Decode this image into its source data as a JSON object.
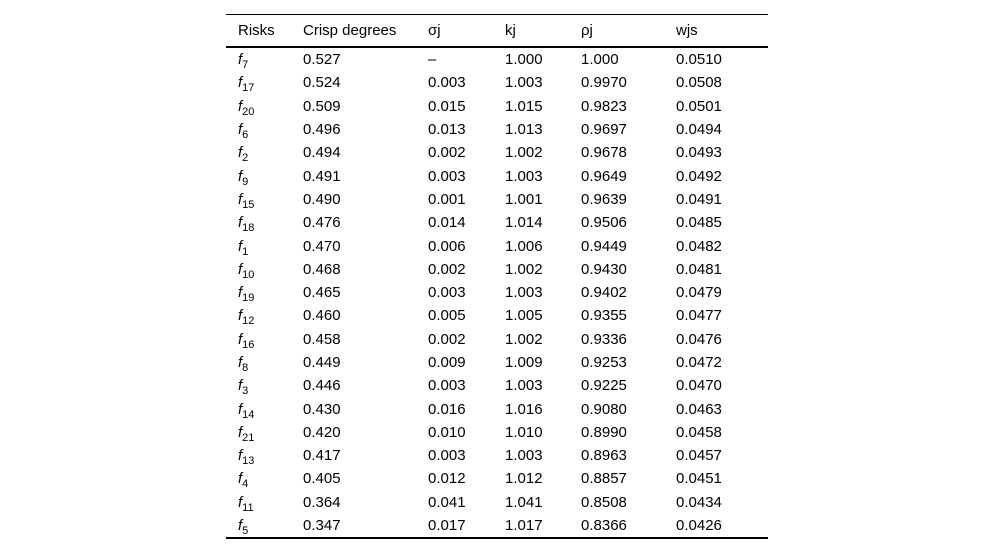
{
  "page": {
    "background_color": "#ffffff",
    "text_color": "#000000",
    "rule_color": "#000000"
  },
  "table": {
    "headers": [
      {
        "id": "risks",
        "label": "Risks"
      },
      {
        "id": "crisp_degrees",
        "label": "Crisp degrees"
      },
      {
        "id": "sigma_j",
        "label": "σj"
      },
      {
        "id": "k_j",
        "label": "kj"
      },
      {
        "id": "rho_j",
        "label": "ρj"
      },
      {
        "id": "w_js",
        "label": "wjs"
      }
    ],
    "rows": [
      {
        "risk_symbol": "f",
        "risk_subscript": "7",
        "crisp_degree": "0.527",
        "sigma": "–",
        "k": "1.000",
        "rho": "1.000",
        "w": "0.0510"
      },
      {
        "risk_symbol": "f",
        "risk_subscript": "17",
        "crisp_degree": "0.524",
        "sigma": "0.003",
        "k": "1.003",
        "rho": "0.9970",
        "w": "0.0508"
      },
      {
        "risk_symbol": "f",
        "risk_subscript": "20",
        "crisp_degree": "0.509",
        "sigma": "0.015",
        "k": "1.015",
        "rho": "0.9823",
        "w": "0.0501"
      },
      {
        "risk_symbol": "f",
        "risk_subscript": "6",
        "crisp_degree": "0.496",
        "sigma": "0.013",
        "k": "1.013",
        "rho": "0.9697",
        "w": "0.0494"
      },
      {
        "risk_symbol": "f",
        "risk_subscript": "2",
        "crisp_degree": "0.494",
        "sigma": "0.002",
        "k": "1.002",
        "rho": "0.9678",
        "w": "0.0493"
      },
      {
        "risk_symbol": "f",
        "risk_subscript": "9",
        "crisp_degree": "0.491",
        "sigma": "0.003",
        "k": "1.003",
        "rho": "0.9649",
        "w": "0.0492"
      },
      {
        "risk_symbol": "f",
        "risk_subscript": "15",
        "crisp_degree": "0.490",
        "sigma": "0.001",
        "k": "1.001",
        "rho": "0.9639",
        "w": "0.0491"
      },
      {
        "risk_symbol": "f",
        "risk_subscript": "18",
        "crisp_degree": "0.476",
        "sigma": "0.014",
        "k": "1.014",
        "rho": "0.9506",
        "w": "0.0485"
      },
      {
        "risk_symbol": "f",
        "risk_subscript": "1",
        "crisp_degree": "0.470",
        "sigma": "0.006",
        "k": "1.006",
        "rho": "0.9449",
        "w": "0.0482"
      },
      {
        "risk_symbol": "f",
        "risk_subscript": "10",
        "crisp_degree": "0.468",
        "sigma": "0.002",
        "k": "1.002",
        "rho": "0.9430",
        "w": "0.0481"
      },
      {
        "risk_symbol": "f",
        "risk_subscript": "19",
        "crisp_degree": "0.465",
        "sigma": "0.003",
        "k": "1.003",
        "rho": "0.9402",
        "w": "0.0479"
      },
      {
        "risk_symbol": "f",
        "risk_subscript": "12",
        "crisp_degree": "0.460",
        "sigma": "0.005",
        "k": "1.005",
        "rho": "0.9355",
        "w": "0.0477"
      },
      {
        "risk_symbol": "f",
        "risk_subscript": "16",
        "crisp_degree": "0.458",
        "sigma": "0.002",
        "k": "1.002",
        "rho": "0.9336",
        "w": "0.0476"
      },
      {
        "risk_symbol": "f",
        "risk_subscript": "8",
        "crisp_degree": "0.449",
        "sigma": "0.009",
        "k": "1.009",
        "rho": "0.9253",
        "w": "0.0472"
      },
      {
        "risk_symbol": "f",
        "risk_subscript": "3",
        "crisp_degree": "0.446",
        "sigma": "0.003",
        "k": "1.003",
        "rho": "0.9225",
        "w": "0.0470"
      },
      {
        "risk_symbol": "f",
        "risk_subscript": "14",
        "crisp_degree": "0.430",
        "sigma": "0.016",
        "k": "1.016",
        "rho": "0.9080",
        "w": "0.0463"
      },
      {
        "risk_symbol": "f",
        "risk_subscript": "21",
        "crisp_degree": "0.420",
        "sigma": "0.010",
        "k": "1.010",
        "rho": "0.8990",
        "w": "0.0458"
      },
      {
        "risk_symbol": "f",
        "risk_subscript": "13",
        "crisp_degree": "0.417",
        "sigma": "0.003",
        "k": "1.003",
        "rho": "0.8963",
        "w": "0.0457"
      },
      {
        "risk_symbol": "f",
        "risk_subscript": "4",
        "crisp_degree": "0.405",
        "sigma": "0.012",
        "k": "1.012",
        "rho": "0.8857",
        "w": "0.0451"
      },
      {
        "risk_symbol": "f",
        "risk_subscript": "11",
        "crisp_degree": "0.364",
        "sigma": "0.041",
        "k": "1.041",
        "rho": "0.8508",
        "w": "0.0434"
      },
      {
        "risk_symbol": "f",
        "risk_subscript": "5",
        "crisp_degree": "0.347",
        "sigma": "0.017",
        "k": "1.017",
        "rho": "0.8366",
        "w": "0.0426"
      }
    ]
  }
}
